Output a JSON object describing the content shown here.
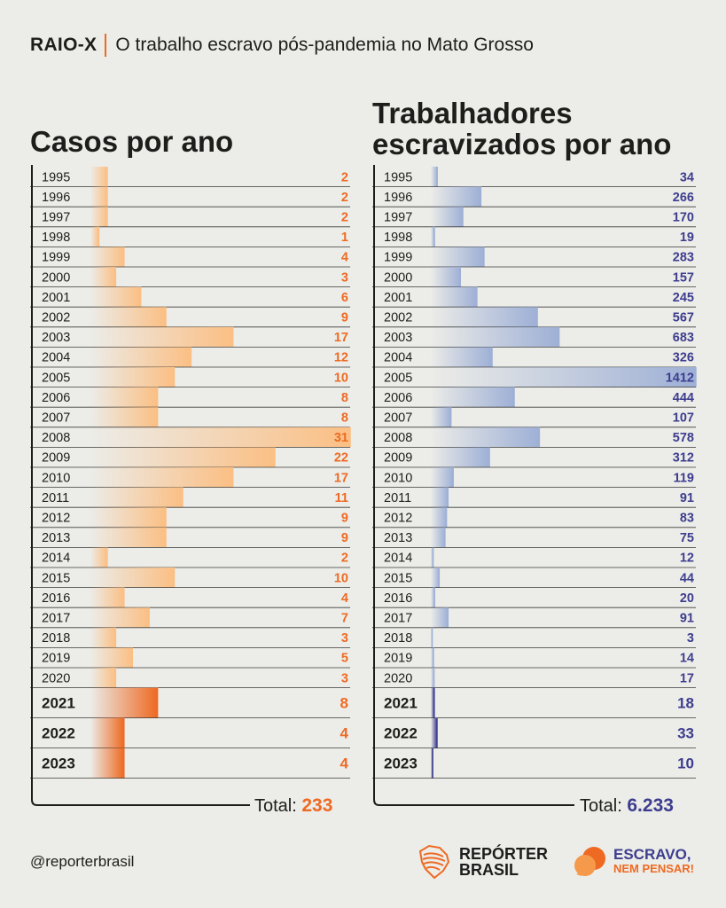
{
  "header": {
    "tag": "RAIO-X",
    "subtitle": "O trabalho escravo pós-pandemia no Mato Grosso"
  },
  "chart_data": [
    {
      "type": "bar",
      "title": "Casos por ano",
      "orientation": "horizontal",
      "categories": [
        "1995",
        "1996",
        "1997",
        "1998",
        "1999",
        "2000",
        "2001",
        "2002",
        "2003",
        "2004",
        "2005",
        "2006",
        "2007",
        "2008",
        "2009",
        "2010",
        "2011",
        "2012",
        "2013",
        "2014",
        "2015",
        "2016",
        "2017",
        "2018",
        "2019",
        "2020",
        "2021",
        "2022",
        "2023"
      ],
      "values": [
        2,
        2,
        2,
        1,
        4,
        3,
        6,
        9,
        17,
        12,
        10,
        8,
        8,
        31,
        22,
        17,
        11,
        9,
        9,
        2,
        10,
        4,
        7,
        3,
        5,
        3,
        8,
        4,
        4
      ],
      "highlight": [
        "2021",
        "2022",
        "2023"
      ],
      "total_label": "Total:",
      "total_value": "233",
      "colors": {
        "bar": "#fbbf84",
        "highlight": "#ee6a23",
        "value_text": "#ee6a23"
      }
    },
    {
      "type": "bar",
      "title": "Trabalhadores escravizados por ano",
      "orientation": "horizontal",
      "categories": [
        "1995",
        "1996",
        "1997",
        "1998",
        "1999",
        "2000",
        "2001",
        "2002",
        "2003",
        "2004",
        "2005",
        "2006",
        "2007",
        "2008",
        "2009",
        "2010",
        "2011",
        "2012",
        "2013",
        "2014",
        "2015",
        "2016",
        "2017",
        "2018",
        "2019",
        "2020",
        "2021",
        "2022",
        "2023"
      ],
      "values": [
        34,
        266,
        170,
        19,
        283,
        157,
        245,
        567,
        683,
        326,
        1412,
        444,
        107,
        578,
        312,
        119,
        91,
        83,
        75,
        12,
        44,
        20,
        91,
        3,
        14,
        17,
        18,
        33,
        10
      ],
      "highlight": [
        "2021",
        "2022",
        "2023"
      ],
      "total_label": "Total:",
      "total_value": "6.233",
      "colors": {
        "bar": "#9eb0d6",
        "highlight": "#3d3d8f",
        "value_text": "#3d3d8f"
      }
    }
  ],
  "footer": {
    "handle": "@reporterbrasil",
    "logo_rb": [
      "REPÓRTER",
      "BRASIL"
    ],
    "logo_en": [
      "ESCRAVO,",
      "NEM PENSAR!"
    ]
  }
}
